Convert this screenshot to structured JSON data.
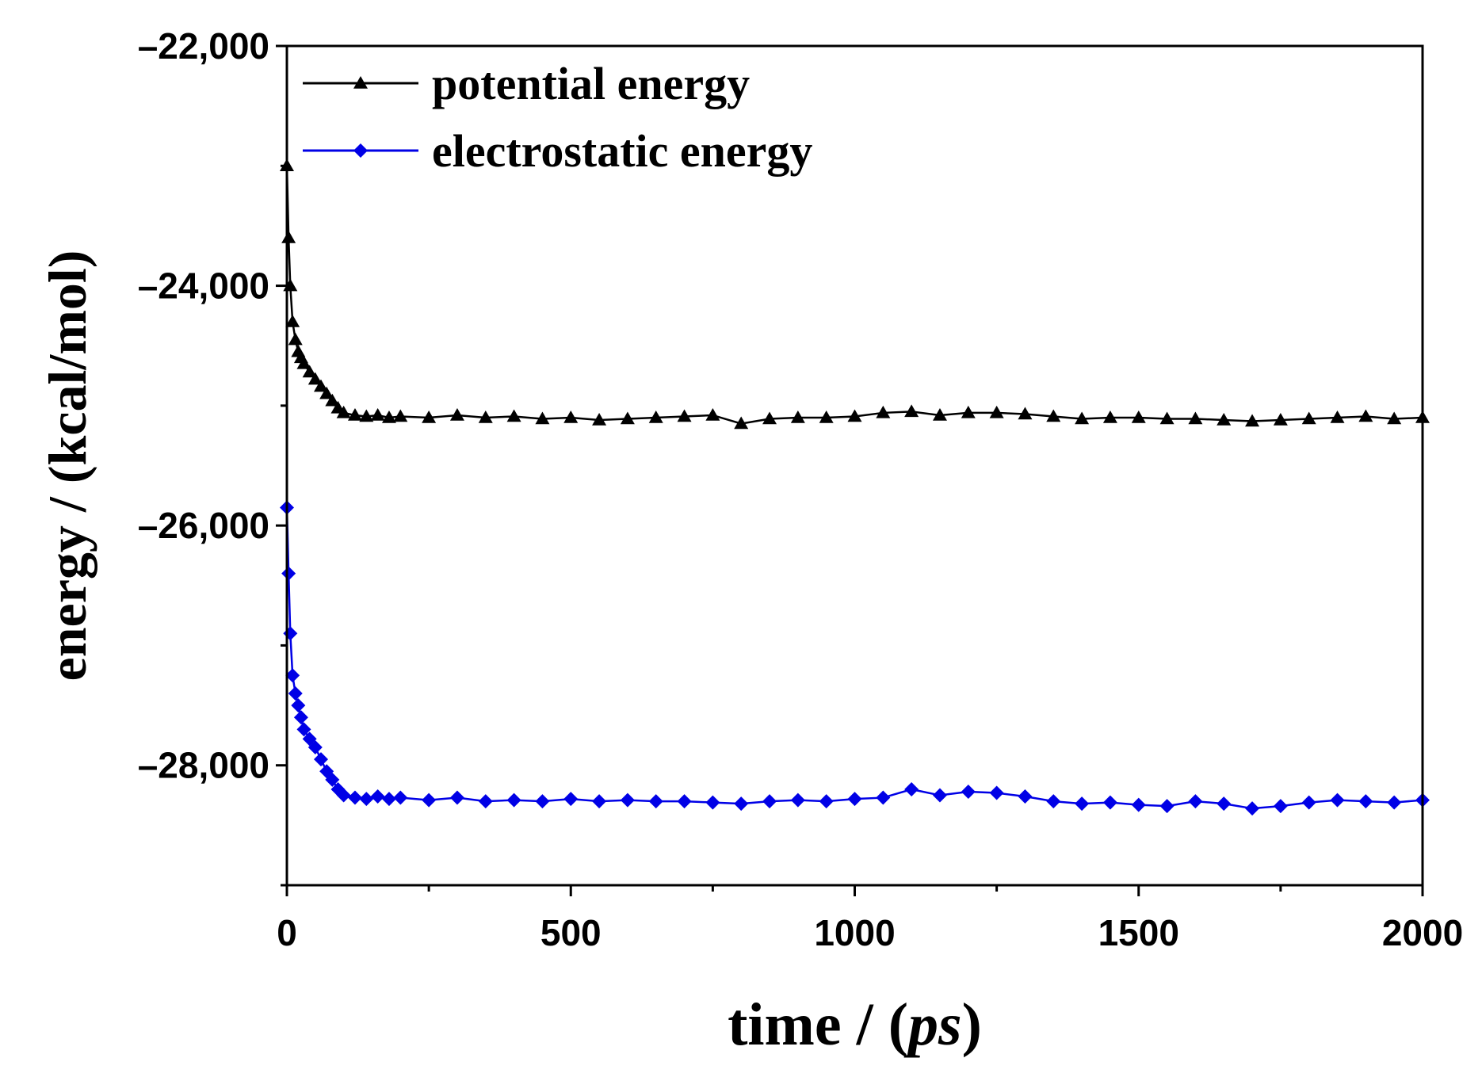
{
  "chart_data": {
    "type": "line",
    "title": "",
    "xlabel_main": "time / (",
    "xlabel_unit": "ps",
    "xlabel_close": ")",
    "ylabel": "energy / (kcal/mol)",
    "xlim": [
      0,
      2000
    ],
    "ylim": [
      -29000,
      -22000
    ],
    "x_ticks": [
      0,
      500,
      1000,
      1500,
      2000
    ],
    "x_tick_labels": [
      "0",
      "500",
      "1000",
      "1500",
      "2000"
    ],
    "y_ticks": [
      -22000,
      -24000,
      -26000,
      -28000
    ],
    "y_tick_labels": [
      "–22,000",
      "–24,000",
      "–26,000",
      "–28,000"
    ],
    "grid": false,
    "legend_position": "top-left",
    "series": [
      {
        "name": "potential energy",
        "color": "#000000",
        "marker": "triangle",
        "x": [
          0,
          3,
          6,
          10,
          15,
          20,
          25,
          30,
          40,
          50,
          60,
          70,
          80,
          90,
          100,
          120,
          140,
          160,
          180,
          200,
          250,
          300,
          350,
          400,
          450,
          500,
          550,
          600,
          650,
          700,
          750,
          800,
          850,
          900,
          950,
          1000,
          1050,
          1100,
          1150,
          1200,
          1250,
          1300,
          1350,
          1400,
          1450,
          1500,
          1550,
          1600,
          1650,
          1700,
          1750,
          1800,
          1850,
          1900,
          1950,
          2000
        ],
        "y": [
          -23000,
          -23600,
          -24000,
          -24300,
          -24450,
          -24550,
          -24600,
          -24650,
          -24720,
          -24780,
          -24840,
          -24900,
          -24960,
          -25020,
          -25060,
          -25080,
          -25090,
          -25080,
          -25100,
          -25090,
          -25100,
          -25080,
          -25100,
          -25090,
          -25110,
          -25100,
          -25120,
          -25110,
          -25100,
          -25090,
          -25080,
          -25150,
          -25110,
          -25100,
          -25100,
          -25090,
          -25060,
          -25050,
          -25080,
          -25060,
          -25060,
          -25070,
          -25090,
          -25110,
          -25100,
          -25100,
          -25110,
          -25110,
          -25120,
          -25130,
          -25120,
          -25110,
          -25100,
          -25090,
          -25110,
          -25100
        ]
      },
      {
        "name": "electrostatic energy",
        "color": "#0000e6",
        "marker": "diamond",
        "x": [
          0,
          3,
          6,
          10,
          15,
          20,
          25,
          30,
          40,
          50,
          60,
          70,
          80,
          90,
          100,
          120,
          140,
          160,
          180,
          200,
          250,
          300,
          350,
          400,
          450,
          500,
          550,
          600,
          650,
          700,
          750,
          800,
          850,
          900,
          950,
          1000,
          1050,
          1100,
          1150,
          1200,
          1250,
          1300,
          1350,
          1400,
          1450,
          1500,
          1550,
          1600,
          1650,
          1700,
          1750,
          1800,
          1850,
          1900,
          1950,
          2000
        ],
        "y": [
          -25850,
          -26400,
          -26900,
          -27250,
          -27400,
          -27500,
          -27600,
          -27700,
          -27780,
          -27850,
          -27950,
          -28050,
          -28120,
          -28200,
          -28250,
          -28270,
          -28280,
          -28260,
          -28280,
          -28270,
          -28290,
          -28270,
          -28300,
          -28290,
          -28300,
          -28280,
          -28300,
          -28290,
          -28300,
          -28300,
          -28310,
          -28320,
          -28300,
          -28290,
          -28300,
          -28280,
          -28270,
          -28200,
          -28250,
          -28220,
          -28230,
          -28260,
          -28300,
          -28320,
          -28310,
          -28330,
          -28340,
          -28300,
          -28320,
          -28360,
          -28340,
          -28310,
          -28290,
          -28300,
          -28310,
          -28290
        ]
      }
    ]
  }
}
